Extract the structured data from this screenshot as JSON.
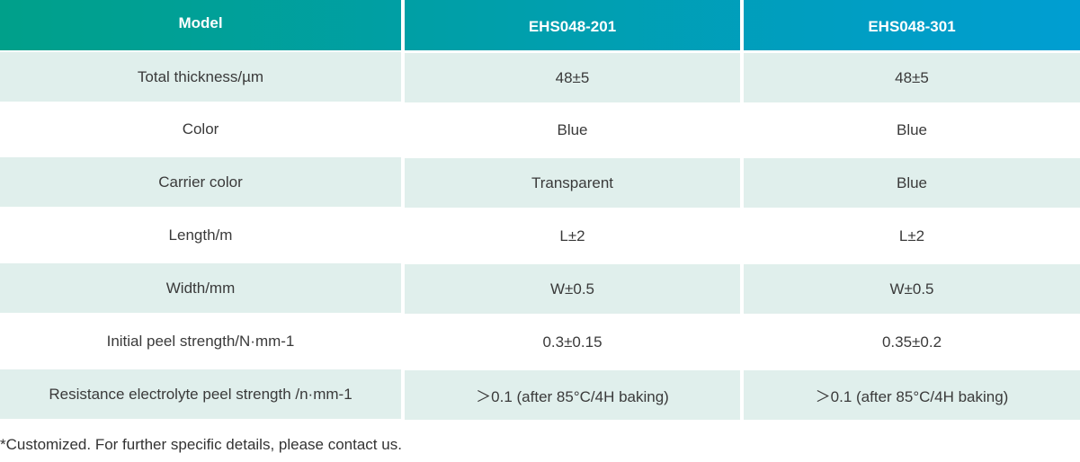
{
  "header": {
    "model_label": "Model",
    "models": [
      "EHS048-201",
      "EHS048-301"
    ]
  },
  "rows": [
    {
      "label": "Total thickness/µm",
      "values": [
        "48±5",
        "48±5"
      ]
    },
    {
      "label": "Color",
      "values": [
        "Blue",
        "Blue"
      ]
    },
    {
      "label": "Carrier color",
      "values": [
        "Transparent",
        "Blue"
      ]
    },
    {
      "label": "Length/m",
      "values": [
        "L±2",
        "L±2"
      ]
    },
    {
      "label": "Width/mm",
      "values": [
        "W±0.5",
        "W±0.5"
      ]
    },
    {
      "label": "Initial peel strength/N·mm-1",
      "values": [
        "0.3±0.15",
        "0.35±0.2"
      ]
    },
    {
      "label": "Resistance electrolyte peel strength /n·mm-1",
      "values": [
        "＞0.1 (after 85°C/4H baking)",
        "＞0.1 (after 85°C/4H baking)"
      ]
    }
  ],
  "footnote": "*Customized. For further specific details, please contact us.",
  "colors": {
    "header_start": "#00a08a",
    "header_end": "#009ed2",
    "row_shade": "#e0efec"
  }
}
